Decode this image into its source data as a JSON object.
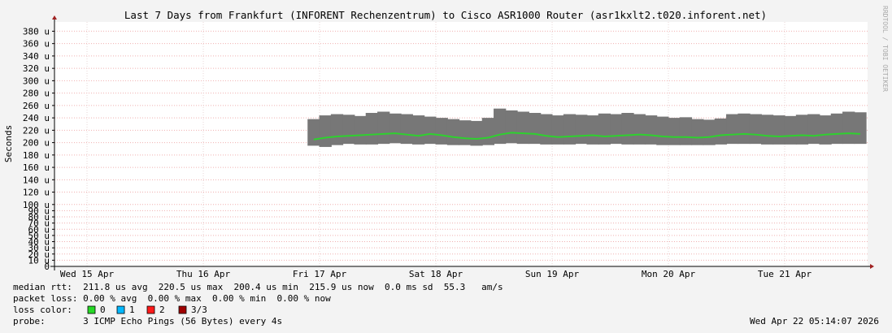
{
  "chart_data": {
    "type": "smoke",
    "title": "Last 7 Days from Frankfurt (INFORENT Rechenzentrum) to Cisco ASR1000 Router (asr1kxlt2.t020.inforent.net)",
    "y_label": "Seconds",
    "watermark": "RRDTOOL / TOBI OETIKER",
    "xlim": [
      0.22,
      7.213
    ],
    "xticks": [
      {
        "value": 0.5,
        "label": "Wed 15 Apr"
      },
      {
        "value": 1.5,
        "label": "Thu 16 Apr"
      },
      {
        "value": 2.5,
        "label": "Fri 17 Apr"
      },
      {
        "value": 3.5,
        "label": "Sat 18 Apr"
      },
      {
        "value": 4.5,
        "label": "Sun 19 Apr"
      },
      {
        "value": 5.5,
        "label": "Mon 20 Apr"
      },
      {
        "value": 6.5,
        "label": "Tue 21 Apr"
      }
    ],
    "ylim": [
      0,
      395
    ],
    "yticks": [
      0,
      {
        "value": 10,
        "label": "10 u"
      },
      {
        "value": 20,
        "label": "20 u"
      },
      {
        "value": 30,
        "label": "30 u"
      },
      {
        "value": 40,
        "label": "40 u"
      },
      {
        "value": 50,
        "label": "50 u"
      },
      {
        "value": 60,
        "label": "60 u"
      },
      {
        "value": 70,
        "label": "70 u"
      },
      {
        "value": 80,
        "label": "80 u"
      },
      {
        "value": 90,
        "label": "90 u"
      },
      {
        "value": 100,
        "label": "100 u"
      },
      {
        "value": 120,
        "label": "120 u"
      },
      {
        "value": 140,
        "label": "140 u"
      },
      {
        "value": 160,
        "label": "160 u"
      },
      {
        "value": 180,
        "label": "180 u"
      },
      {
        "value": 200,
        "label": "200 u"
      },
      {
        "value": 220,
        "label": "220 u"
      },
      {
        "value": 240,
        "label": "240 u"
      },
      {
        "value": 260,
        "label": "260 u"
      },
      {
        "value": 280,
        "label": "280 u"
      },
      {
        "value": 300,
        "label": "300 u"
      },
      {
        "value": 320,
        "label": "320 u"
      },
      {
        "value": 340,
        "label": "340 u"
      },
      {
        "value": 360,
        "label": "360 u"
      },
      {
        "value": 380,
        "label": "380 u"
      }
    ],
    "grid": true,
    "x": [
      2.45,
      2.55,
      2.65,
      2.75,
      2.85,
      2.95,
      3.05,
      3.15,
      3.25,
      3.35,
      3.45,
      3.55,
      3.65,
      3.75,
      3.85,
      3.95,
      4.05,
      4.15,
      4.25,
      4.35,
      4.45,
      4.55,
      4.65,
      4.75,
      4.85,
      4.95,
      5.05,
      5.15,
      5.25,
      5.35,
      5.45,
      5.55,
      5.65,
      5.75,
      5.85,
      5.95,
      6.05,
      6.15,
      6.25,
      6.35,
      6.45,
      6.55,
      6.65,
      6.75,
      6.85,
      6.95,
      7.05,
      7.15
    ],
    "series": [
      {
        "color": "#2ed12e",
        "values": [
          205,
          208,
          210,
          211,
          212,
          213,
          214,
          215,
          213,
          211,
          214,
          212,
          209,
          207,
          206,
          208,
          213,
          216,
          215,
          214,
          211,
          209,
          210,
          211,
          212,
          210,
          211,
          212,
          213,
          212,
          210,
          209,
          209,
          208,
          209,
          212,
          213,
          214,
          213,
          211,
          210,
          211,
          212,
          211,
          213,
          214,
          215,
          214
        ]
      },
      {
        "color": "#777777",
        "values": [
          238,
          244,
          246,
          245,
          243,
          248,
          250,
          247,
          246,
          244,
          242,
          240,
          238,
          236,
          235,
          240,
          255,
          252,
          250,
          248,
          246,
          244,
          246,
          245,
          244,
          247,
          246,
          248,
          246,
          244,
          242,
          240,
          241,
          238,
          237,
          239,
          246,
          247,
          246,
          245,
          244,
          243,
          245,
          246,
          244,
          247,
          250,
          249
        ]
      },
      {
        "color": "#777777",
        "values": [
          195,
          193,
          196,
          198,
          197,
          197,
          198,
          199,
          198,
          197,
          198,
          197,
          196,
          196,
          195,
          196,
          198,
          199,
          198,
          198,
          197,
          197,
          197,
          198,
          197,
          197,
          198,
          197,
          197,
          197,
          196,
          196,
          196,
          196,
          196,
          197,
          198,
          198,
          198,
          197,
          197,
          197,
          197,
          198,
          197,
          198,
          198,
          198
        ]
      }
    ],
    "legend": {
      "lines": [
        "median rtt:  211.8 us avg  220.5 us max  200.4 us min  215.9 us now  0.0 ms sd  55.3   am/s",
        "packet loss: 0.00 % avg  0.00 % max  0.00 % min  0.00 % now",
        "loss color:",
        "probe:       3 ICMP Echo Pings (56 Bytes) every 4s"
      ],
      "loss_colors": [
        {
          "label": "0",
          "color": "#26d926"
        },
        {
          "label": "1",
          "color": "#00b8ff"
        },
        {
          "label": "2",
          "color": "#ff1a1a"
        },
        {
          "label": "3/3",
          "color": "#a00000"
        }
      ],
      "timestamp": "Wed Apr 22 05:14:07 2026"
    }
  }
}
